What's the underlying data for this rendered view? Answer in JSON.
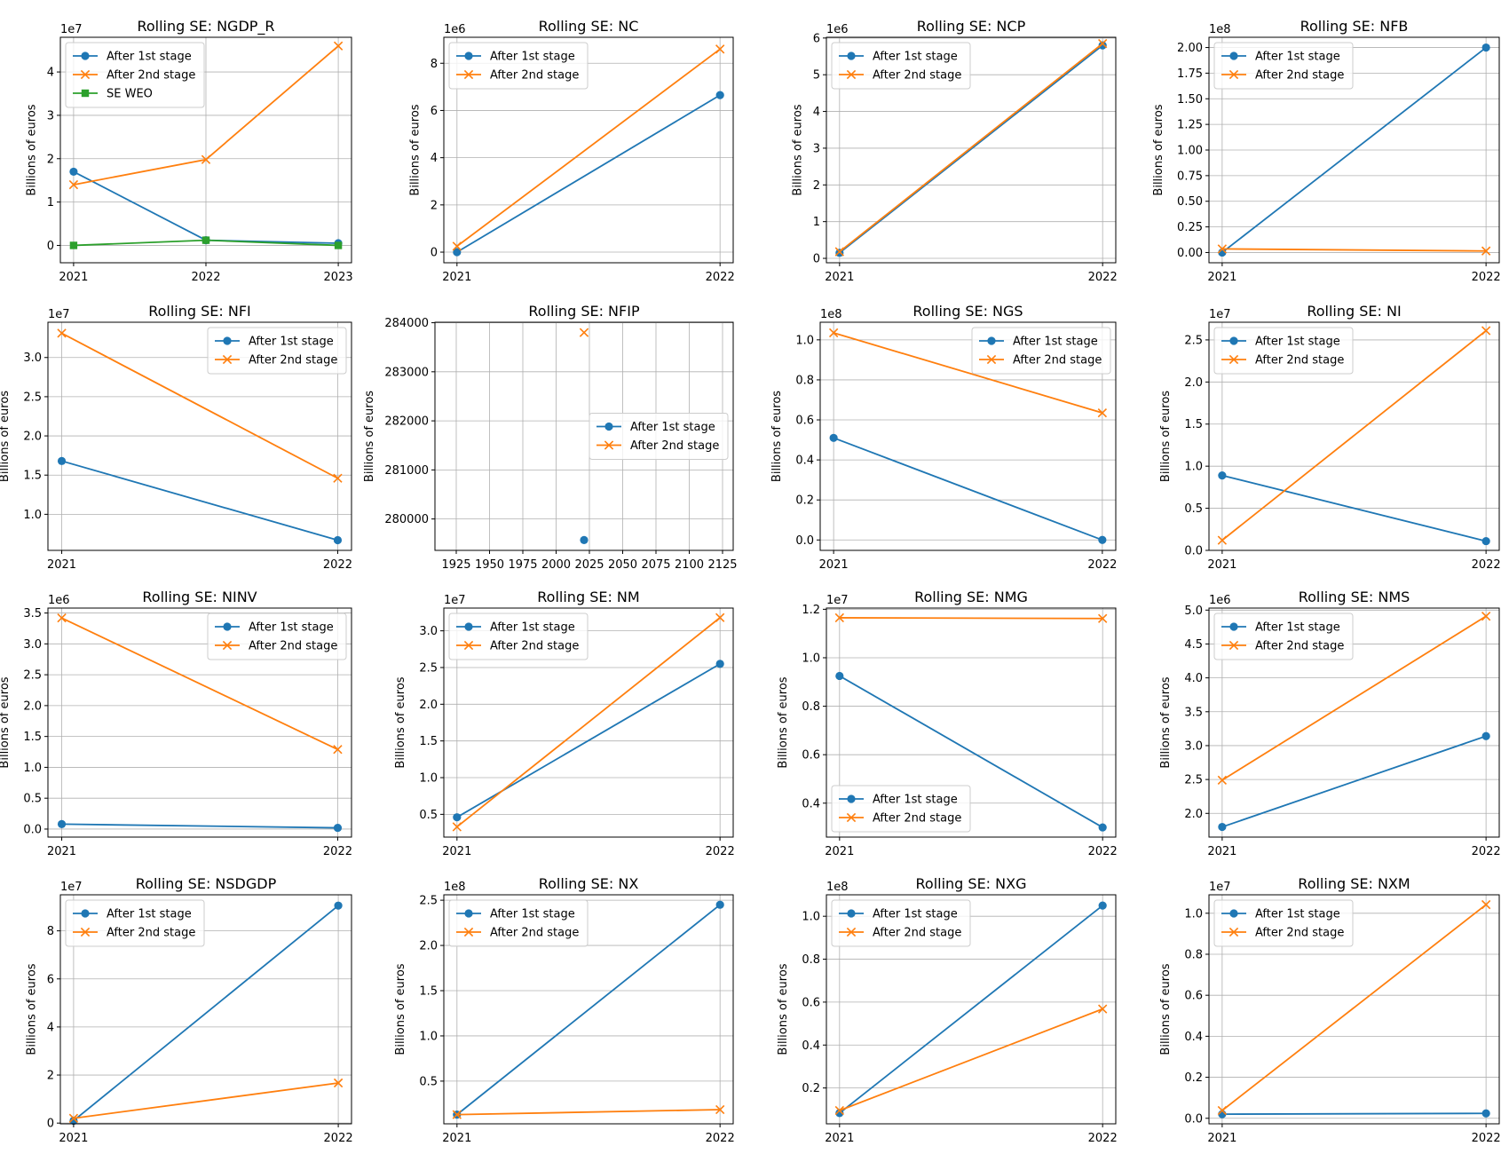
{
  "figure": {
    "ylabel": "Billions of euros"
  },
  "chart_data": [
    {
      "type": "line",
      "title": "Rolling SE: NGDP_R",
      "ylabel": "Billions of euros",
      "x": [
        2021,
        2022,
        2023
      ],
      "xlim": [
        2020.9,
        2023.1
      ],
      "ylim": [
        -4000000,
        48000000
      ],
      "yticks": [
        0,
        10000000,
        20000000,
        30000000,
        40000000
      ],
      "ytick_labels": [
        "0",
        "1",
        "2",
        "3",
        "4"
      ],
      "y_offset_label": "1e7",
      "xticks": [
        2021,
        2022,
        2023
      ],
      "xtick_labels": [
        "2021",
        "2022",
        "2023"
      ],
      "grid": true,
      "legend": "upper left",
      "series": [
        {
          "name": "After 1st stage",
          "marker": "o",
          "values": [
            17000000,
            1200000,
            500000
          ]
        },
        {
          "name": "After 2nd stage",
          "marker": "x",
          "values": [
            14000000,
            19800000,
            46000000
          ]
        },
        {
          "name": "SE WEO",
          "marker": "s",
          "values": [
            0,
            1200000,
            0
          ]
        }
      ]
    },
    {
      "type": "line",
      "title": "Rolling SE: NC",
      "ylabel": "Billions of euros",
      "x": [
        2021,
        2022
      ],
      "xlim": [
        2020.95,
        2022.05
      ],
      "ylim": [
        -450000,
        9100000
      ],
      "yticks": [
        0,
        2000000,
        4000000,
        6000000,
        8000000
      ],
      "ytick_labels": [
        "0",
        "2",
        "4",
        "6",
        "8"
      ],
      "y_offset_label": "1e6",
      "xticks": [
        2021,
        2022
      ],
      "xtick_labels": [
        "2021",
        "2022"
      ],
      "grid": true,
      "legend": "upper left",
      "series": [
        {
          "name": "After 1st stage",
          "marker": "o",
          "values": [
            0,
            6650000
          ]
        },
        {
          "name": "After 2nd stage",
          "marker": "x",
          "values": [
            250000,
            8600000
          ]
        }
      ]
    },
    {
      "type": "line",
      "title": "Rolling SE: NCP",
      "ylabel": "Billions of euros",
      "x": [
        2021,
        2022
      ],
      "xlim": [
        2020.95,
        2022.05
      ],
      "ylim": [
        -120000,
        6020000
      ],
      "yticks": [
        0,
        1000000,
        2000000,
        3000000,
        4000000,
        5000000,
        6000000
      ],
      "ytick_labels": [
        "0",
        "1",
        "2",
        "3",
        "4",
        "5",
        "6"
      ],
      "y_offset_label": "1e6",
      "xticks": [
        2021,
        2022
      ],
      "xtick_labels": [
        "2021",
        "2022"
      ],
      "grid": true,
      "legend": "upper left",
      "series": [
        {
          "name": "After 1st stage",
          "marker": "o",
          "values": [
            150000,
            5800000
          ]
        },
        {
          "name": "After 2nd stage",
          "marker": "x",
          "values": [
            180000,
            5850000
          ]
        }
      ]
    },
    {
      "type": "line",
      "title": "Rolling SE: NFB",
      "ylabel": "Billions of euros",
      "x": [
        2021,
        2022
      ],
      "xlim": [
        2020.95,
        2022.05
      ],
      "ylim": [
        -10000000,
        210000000
      ],
      "yticks": [
        0,
        25000000,
        50000000,
        75000000,
        100000000,
        125000000,
        150000000,
        175000000,
        200000000
      ],
      "ytick_labels": [
        "0.00",
        "0.25",
        "0.50",
        "0.75",
        "1.00",
        "1.25",
        "1.50",
        "1.75",
        "2.00"
      ],
      "y_offset_label": "1e8",
      "xticks": [
        2021,
        2022
      ],
      "xtick_labels": [
        "2021",
        "2022"
      ],
      "grid": true,
      "legend": "upper left",
      "series": [
        {
          "name": "After 1st stage",
          "marker": "o",
          "values": [
            0,
            200000000
          ]
        },
        {
          "name": "After 2nd stage",
          "marker": "x",
          "values": [
            3500000,
            1500000
          ]
        }
      ]
    },
    {
      "type": "line",
      "title": "Rolling SE: NFI",
      "ylabel": "Billions of euros",
      "x": [
        2021,
        2022
      ],
      "xlim": [
        2020.95,
        2022.05
      ],
      "ylim": [
        5400000,
        34500000
      ],
      "yticks": [
        10000000,
        15000000,
        20000000,
        25000000,
        30000000
      ],
      "ytick_labels": [
        "1.0",
        "1.5",
        "2.0",
        "2.5",
        "3.0"
      ],
      "y_offset_label": "1e7",
      "xticks": [
        2021,
        2022
      ],
      "xtick_labels": [
        "2021",
        "2022"
      ],
      "grid": true,
      "legend": "upper right",
      "series": [
        {
          "name": "After 1st stage",
          "marker": "o",
          "values": [
            16800000,
            6700000
          ]
        },
        {
          "name": "After 2nd stage",
          "marker": "x",
          "values": [
            33100000,
            14600000
          ]
        }
      ]
    },
    {
      "type": "scatter",
      "title": "Rolling SE: NFIP",
      "ylabel": "Billions of euros",
      "x": [
        2021
      ],
      "xlim": [
        1909,
        2133
      ],
      "ylim": [
        279360,
        284010
      ],
      "yticks": [
        280000,
        281000,
        282000,
        283000,
        284000
      ],
      "ytick_labels": [
        "280000",
        "281000",
        "282000",
        "283000",
        "284000"
      ],
      "y_offset_label": "",
      "xticks": [
        1925,
        1950,
        1975,
        2000,
        2025,
        2050,
        2075,
        2100,
        2125
      ],
      "xtick_labels": [
        "1925",
        "1950",
        "1975",
        "2000",
        "2025",
        "2050",
        "2075",
        "2100",
        "2125"
      ],
      "grid": true,
      "legend": "center right",
      "series": [
        {
          "name": "After 1st stage",
          "marker": "o",
          "values": [
            279570
          ]
        },
        {
          "name": "After 2nd stage",
          "marker": "x",
          "values": [
            283800
          ]
        }
      ]
    },
    {
      "type": "line",
      "title": "Rolling SE: NGS",
      "ylabel": "Billions of euros",
      "x": [
        2021,
        2022
      ],
      "xlim": [
        2020.95,
        2022.05
      ],
      "ylim": [
        -5200000,
        108800000
      ],
      "yticks": [
        0,
        20000000,
        40000000,
        60000000,
        80000000,
        100000000
      ],
      "ytick_labels": [
        "0.0",
        "0.2",
        "0.4",
        "0.6",
        "0.8",
        "1.0"
      ],
      "y_offset_label": "1e8",
      "xticks": [
        2021,
        2022
      ],
      "xtick_labels": [
        "2021",
        "2022"
      ],
      "grid": true,
      "legend": "upper right",
      "series": [
        {
          "name": "After 1st stage",
          "marker": "o",
          "values": [
            51000000,
            0
          ]
        },
        {
          "name": "After 2nd stage",
          "marker": "x",
          "values": [
            103500000,
            63500000
          ]
        }
      ]
    },
    {
      "type": "line",
      "title": "Rolling SE: NI",
      "ylabel": "Billions of euros",
      "x": [
        2021,
        2022
      ],
      "xlim": [
        2020.95,
        2022.05
      ],
      "ylim": [
        0,
        27100000
      ],
      "yticks": [
        0,
        5000000,
        10000000,
        15000000,
        20000000,
        25000000
      ],
      "ytick_labels": [
        "0.0",
        "0.5",
        "1.0",
        "1.5",
        "2.0",
        "2.5"
      ],
      "y_offset_label": "1e7",
      "xticks": [
        2021,
        2022
      ],
      "xtick_labels": [
        "2021",
        "2022"
      ],
      "grid": true,
      "legend": "upper left",
      "series": [
        {
          "name": "After 1st stage",
          "marker": "o",
          "values": [
            8900000,
            1100000
          ]
        },
        {
          "name": "After 2nd stage",
          "marker": "x",
          "values": [
            1200000,
            26100000
          ]
        }
      ]
    },
    {
      "type": "line",
      "title": "Rolling SE: NINV",
      "ylabel": "Billions of euros",
      "x": [
        2021,
        2022
      ],
      "xlim": [
        2020.95,
        2022.05
      ],
      "ylim": [
        -130000,
        3580000
      ],
      "yticks": [
        0,
        500000,
        1000000,
        1500000,
        2000000,
        2500000,
        3000000,
        3500000
      ],
      "ytick_labels": [
        "0.0",
        "0.5",
        "1.0",
        "1.5",
        "2.0",
        "2.5",
        "3.0",
        "3.5"
      ],
      "y_offset_label": "1e6",
      "xticks": [
        2021,
        2022
      ],
      "xtick_labels": [
        "2021",
        "2022"
      ],
      "grid": true,
      "legend": "upper right",
      "series": [
        {
          "name": "After 1st stage",
          "marker": "o",
          "values": [
            80000,
            20000
          ]
        },
        {
          "name": "After 2nd stage",
          "marker": "x",
          "values": [
            3420000,
            1290000
          ]
        }
      ]
    },
    {
      "type": "line",
      "title": "Rolling SE: NM",
      "ylabel": "Billions of euros",
      "x": [
        2021,
        2022
      ],
      "xlim": [
        2020.95,
        2022.05
      ],
      "ylim": [
        1900000,
        33100000
      ],
      "yticks": [
        5000000,
        10000000,
        15000000,
        20000000,
        25000000,
        30000000
      ],
      "ytick_labels": [
        "0.5",
        "1.0",
        "1.5",
        "2.0",
        "2.5",
        "3.0"
      ],
      "y_offset_label": "1e7",
      "xticks": [
        2021,
        2022
      ],
      "xtick_labels": [
        "2021",
        "2022"
      ],
      "grid": true,
      "legend": "upper left",
      "series": [
        {
          "name": "After 1st stage",
          "marker": "o",
          "values": [
            4600000,
            25500000
          ]
        },
        {
          "name": "After 2nd stage",
          "marker": "x",
          "values": [
            3300000,
            31800000
          ]
        }
      ]
    },
    {
      "type": "line",
      "title": "Rolling SE: NMG",
      "ylabel": "Billions of euros",
      "x": [
        2021,
        2022
      ],
      "xlim": [
        2020.95,
        2022.05
      ],
      "ylim": [
        2600000,
        12050000
      ],
      "yticks": [
        4000000,
        6000000,
        8000000,
        10000000,
        12000000
      ],
      "ytick_labels": [
        "0.4",
        "0.6",
        "0.8",
        "1.0",
        "1.2"
      ],
      "y_offset_label": "1e7",
      "xticks": [
        2021,
        2022
      ],
      "xtick_labels": [
        "2021",
        "2022"
      ],
      "grid": true,
      "legend": "lower left",
      "series": [
        {
          "name": "After 1st stage",
          "marker": "o",
          "values": [
            9250000,
            3000000
          ]
        },
        {
          "name": "After 2nd stage",
          "marker": "x",
          "values": [
            11650000,
            11620000
          ]
        }
      ]
    },
    {
      "type": "line",
      "title": "Rolling SE: NMS",
      "ylabel": "Billions of euros",
      "x": [
        2021,
        2022
      ],
      "xlim": [
        2020.95,
        2022.05
      ],
      "ylim": [
        1650000,
        5030000
      ],
      "yticks": [
        2000000,
        2500000,
        3000000,
        3500000,
        4000000,
        4500000,
        5000000
      ],
      "ytick_labels": [
        "2.0",
        "2.5",
        "3.0",
        "3.5",
        "4.0",
        "4.5",
        "5.0"
      ],
      "y_offset_label": "1e6",
      "xticks": [
        2021,
        2022
      ],
      "xtick_labels": [
        "2021",
        "2022"
      ],
      "grid": true,
      "legend": "upper left",
      "series": [
        {
          "name": "After 1st stage",
          "marker": "o",
          "values": [
            1800000,
            3140000
          ]
        },
        {
          "name": "After 2nd stage",
          "marker": "x",
          "values": [
            2490000,
            4910000
          ]
        }
      ]
    },
    {
      "type": "line",
      "title": "Rolling SE: NSDGDP",
      "ylabel": "Billions of euros",
      "x": [
        2021,
        2022
      ],
      "xlim": [
        2020.95,
        2022.05
      ],
      "ylim": [
        -300000,
        95000000
      ],
      "yticks": [
        0,
        20000000,
        40000000,
        60000000,
        80000000
      ],
      "ytick_labels": [
        "0",
        "2",
        "4",
        "6",
        "8"
      ],
      "y_offset_label": "1e7",
      "xticks": [
        2021,
        2022
      ],
      "xtick_labels": [
        "2021",
        "2022"
      ],
      "grid": true,
      "legend": "upper left",
      "series": [
        {
          "name": "After 1st stage",
          "marker": "o",
          "values": [
            1000000,
            90500000
          ]
        },
        {
          "name": "After 2nd stage",
          "marker": "x",
          "values": [
            2000000,
            16700000
          ]
        }
      ]
    },
    {
      "type": "line",
      "title": "Rolling SE: NX",
      "ylabel": "Billions of euros",
      "x": [
        2021,
        2022
      ],
      "xlim": [
        2020.95,
        2022.05
      ],
      "ylim": [
        2800000,
        256000000
      ],
      "yticks": [
        50000000,
        100000000,
        150000000,
        200000000,
        250000000
      ],
      "ytick_labels": [
        "0.5",
        "1.0",
        "1.5",
        "2.0",
        "2.5"
      ],
      "y_offset_label": "1e8",
      "xticks": [
        2021,
        2022
      ],
      "xtick_labels": [
        "2021",
        "2022"
      ],
      "grid": true,
      "legend": "upper left",
      "series": [
        {
          "name": "After 1st stage",
          "marker": "o",
          "values": [
            13000000,
            245000000
          ]
        },
        {
          "name": "After 2nd stage",
          "marker": "x",
          "values": [
            13000000,
            18500000
          ]
        }
      ]
    },
    {
      "type": "line",
      "title": "Rolling SE: NXG",
      "ylabel": "Billions of euros",
      "x": [
        2021,
        2022
      ],
      "xlim": [
        2020.95,
        2022.05
      ],
      "ylim": [
        3300000,
        110000000
      ],
      "yticks": [
        20000000,
        40000000,
        60000000,
        80000000,
        100000000
      ],
      "ytick_labels": [
        "0.2",
        "0.4",
        "0.6",
        "0.8",
        "1.0"
      ],
      "y_offset_label": "1e8",
      "xticks": [
        2021,
        2022
      ],
      "xtick_labels": [
        "2021",
        "2022"
      ],
      "grid": true,
      "legend": "upper left",
      "series": [
        {
          "name": "After 1st stage",
          "marker": "o",
          "values": [
            8300000,
            105000000
          ]
        },
        {
          "name": "After 2nd stage",
          "marker": "x",
          "values": [
            9500000,
            56800000
          ]
        }
      ]
    },
    {
      "type": "line",
      "title": "Rolling SE: NXM",
      "ylabel": "Billions of euros",
      "x": [
        2021,
        2022
      ],
      "xlim": [
        2020.95,
        2022.05
      ],
      "ylim": [
        -270000,
        10900000
      ],
      "yticks": [
        0,
        2000000,
        4000000,
        6000000,
        8000000,
        10000000
      ],
      "ytick_labels": [
        "0.0",
        "0.2",
        "0.4",
        "0.6",
        "0.8",
        "1.0"
      ],
      "y_offset_label": "1e7",
      "xticks": [
        2021,
        2022
      ],
      "xtick_labels": [
        "2021",
        "2022"
      ],
      "grid": true,
      "legend": "upper left",
      "series": [
        {
          "name": "After 1st stage",
          "marker": "o",
          "values": [
            200000,
            240000
          ]
        },
        {
          "name": "After 2nd stage",
          "marker": "x",
          "values": [
            380000,
            10420000
          ]
        }
      ]
    }
  ],
  "colors": {
    "series_1": "#1f77b4",
    "series_2": "#ff7f0e",
    "series_3": "#2ca02c"
  }
}
